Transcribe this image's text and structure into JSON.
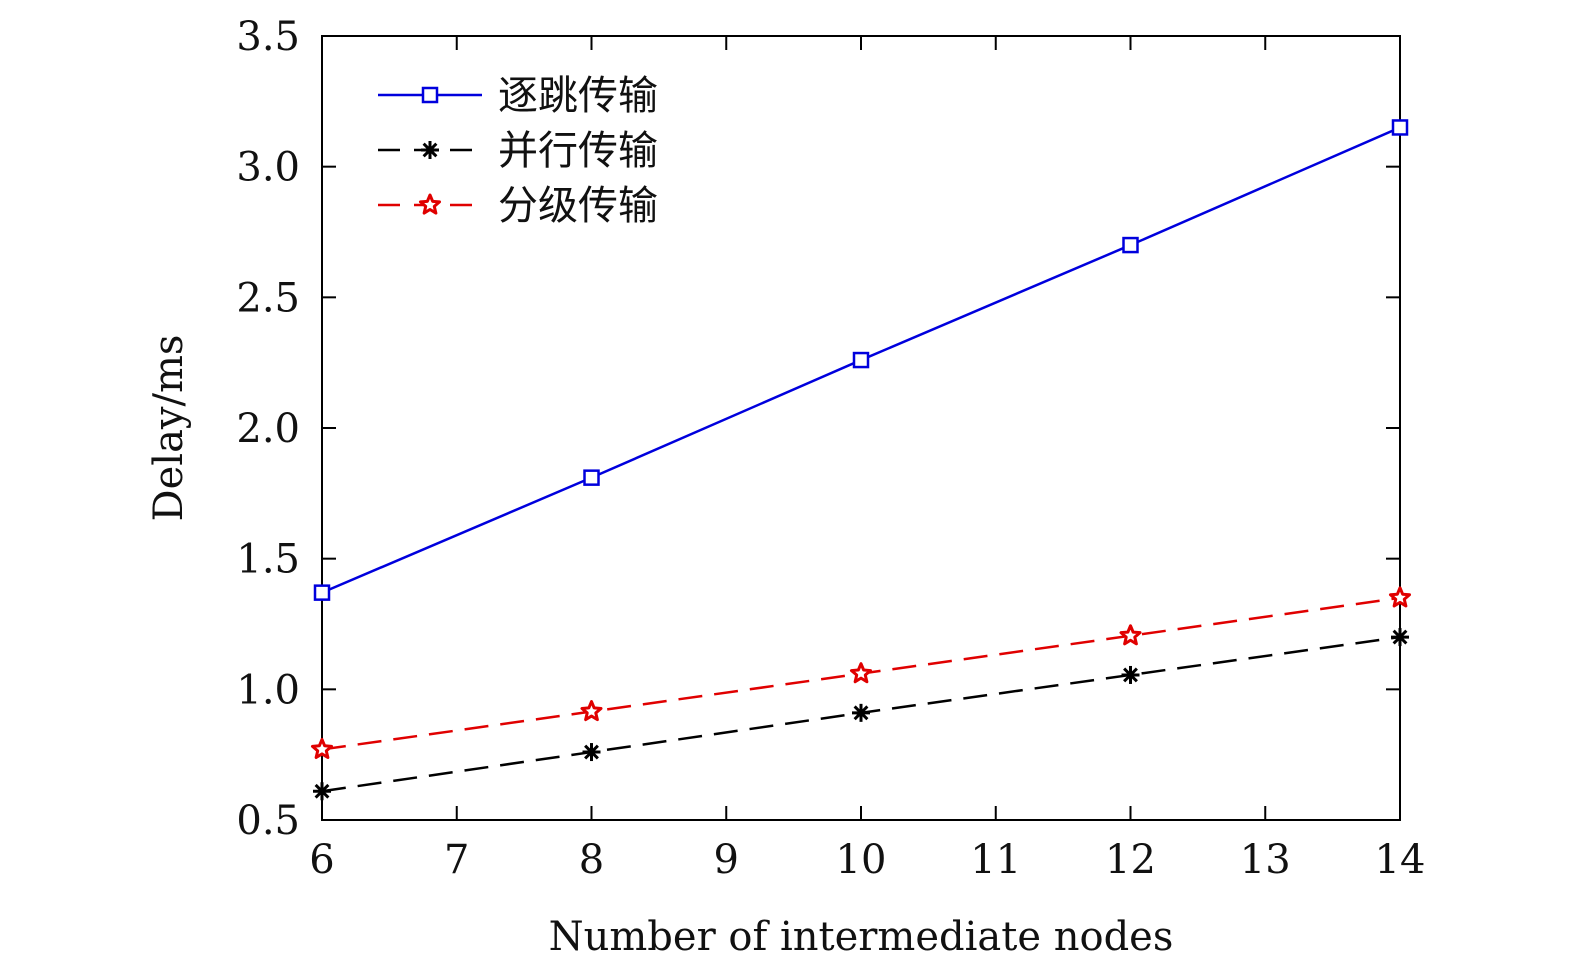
{
  "chart_data": {
    "type": "line",
    "title": "",
    "xlabel": "Number of intermediate nodes",
    "ylabel": "Delay/ms",
    "xlim": [
      6,
      14
    ],
    "ylim": [
      0.5,
      3.5
    ],
    "xticks": [
      "6",
      "7",
      "8",
      "9",
      "10",
      "11",
      "12",
      "13",
      "14"
    ],
    "yticks": [
      "0.5",
      "1.0",
      "1.5",
      "2.0",
      "2.5",
      "3.0",
      "3.5"
    ],
    "grid": false,
    "legend_position": "top-left",
    "x": [
      6,
      8,
      10,
      12,
      14
    ],
    "series": [
      {
        "name": "逐跳传输",
        "values": [
          1.37,
          1.81,
          2.26,
          2.7,
          3.15
        ],
        "color": "#0000dd",
        "marker": "square",
        "dash": "solid"
      },
      {
        "name": "并行传输",
        "values": [
          0.61,
          0.76,
          0.91,
          1.055,
          1.2
        ],
        "color": "#000000",
        "marker": "asterisk",
        "dash": "dashed"
      },
      {
        "name": "分级传输",
        "values": [
          0.77,
          0.915,
          1.06,
          1.205,
          1.35
        ],
        "color": "#e00000",
        "marker": "star",
        "dash": "dashed"
      }
    ]
  }
}
